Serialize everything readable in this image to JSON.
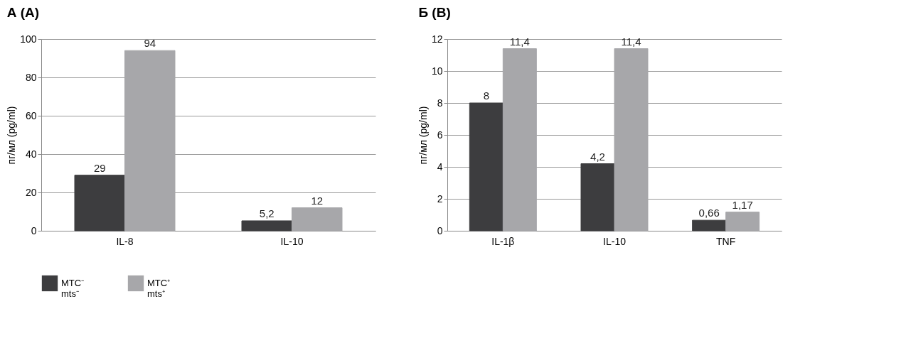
{
  "chart_data": [
    {
      "type": "bar",
      "title": "А (A)",
      "ylabel": "пг/мл (pg/ml)",
      "categories": [
        "IL-8",
        "IL-10"
      ],
      "ylim": [
        0,
        100
      ],
      "yticks": [
        0,
        20,
        40,
        60,
        80,
        100
      ],
      "grid": "y",
      "legend": "bottom",
      "series": [
        {
          "name": "МТС⁻ mts⁻",
          "color": "#3d3d3f",
          "values": [
            29,
            5.2
          ],
          "value_labels": [
            "29",
            "5,2"
          ]
        },
        {
          "name": "МТС⁺ mts⁺",
          "color": "#a7a7aa",
          "values": [
            94,
            12
          ],
          "value_labels": [
            "94",
            "12"
          ]
        }
      ]
    },
    {
      "type": "bar",
      "title": "Б (B)",
      "ylabel": "пг/мл (pg/ml)",
      "categories": [
        "IL-1β",
        "IL-10",
        "TNF"
      ],
      "ylim": [
        0,
        12
      ],
      "yticks": [
        0,
        2,
        4,
        6,
        8,
        10,
        12
      ],
      "grid": "y",
      "legend": "bottom",
      "series": [
        {
          "name": "МТС⁻ mts⁻",
          "color": "#3d3d3f",
          "values": [
            8,
            4.2,
            0.66
          ],
          "value_labels": [
            "8",
            "4,2",
            "0,66"
          ]
        },
        {
          "name": "МТС⁺ mts⁺",
          "color": "#a7a7aa",
          "values": [
            11.4,
            11.4,
            1.17
          ],
          "value_labels": [
            "11,4",
            "11,4",
            "1,17"
          ]
        }
      ]
    }
  ]
}
